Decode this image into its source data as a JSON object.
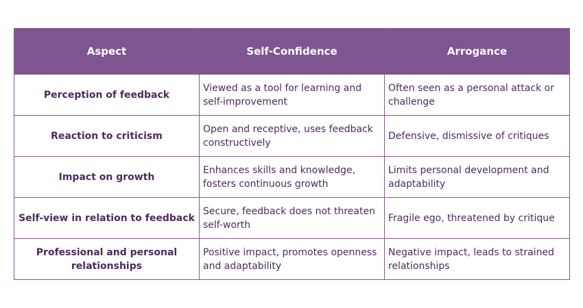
{
  "table": {
    "headers": [
      "Aspect",
      "Self-Confidence",
      "Arrogance"
    ],
    "rows": [
      [
        "Perception of feedback",
        "Viewed as a tool for learning and self-improvement",
        "Often seen as a personal attack or challenge"
      ],
      [
        "Reaction to criticism",
        "Open and receptive, uses feedback constructively",
        "Defensive, dismissive of critiques"
      ],
      [
        "Impact on growth",
        "Enhances skills and knowledge, fosters continuous growth",
        "Limits personal development and adaptability"
      ],
      [
        "Self-view in relation to feedback",
        "Secure, feedback does not threaten self-worth",
        "Fragile ego, threatened by critique"
      ],
      [
        "Professional and personal relationships",
        "Positive impact, promotes openness and adaptability",
        "Negative impact, leads to strained relationships"
      ]
    ]
  },
  "colors": {
    "header_bg": "#7e5591",
    "border": "#84578f",
    "text": "#4f2a5c"
  }
}
